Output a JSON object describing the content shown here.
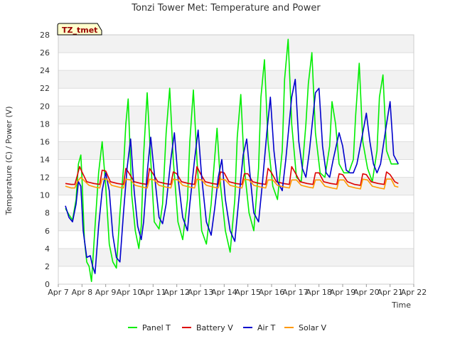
{
  "chart_data": {
    "type": "line",
    "title": "Tonzi Tower Met: Temperature and Power",
    "xlabel": "Time",
    "ylabel": "Temperature (C) / Power (V)",
    "site_tag": "TZ_tmet",
    "xlim": [
      7,
      22
    ],
    "ylim": [
      0,
      28
    ],
    "x_ticks": [
      7,
      8,
      9,
      10,
      11,
      12,
      13,
      14,
      15,
      16,
      17,
      18,
      19,
      20,
      21,
      22
    ],
    "x_tick_labels": [
      "Apr 7",
      "Apr 8",
      "Apr 9",
      "Apr 10",
      "Apr 11",
      "Apr 12",
      "Apr 13",
      "Apr 14",
      "Apr 15",
      "Apr 16",
      "Apr 17",
      "Apr 18",
      "Apr 19",
      "Apr 20",
      "Apr 21",
      "Apr 22"
    ],
    "y_ticks": [
      0,
      2,
      4,
      6,
      8,
      10,
      12,
      14,
      16,
      18,
      20,
      22,
      24,
      26,
      28
    ],
    "y_tick_labels": [
      "0",
      "2",
      "4",
      "6",
      "8",
      "10",
      "12",
      "14",
      "16",
      "18",
      "20",
      "22",
      "24",
      "26",
      "28"
    ],
    "legend_position": "bottom-center",
    "series": [
      {
        "name": "Panel T",
        "color": "#00ee00",
        "x": [
          7.3,
          7.45,
          7.6,
          7.75,
          7.85,
          7.95,
          8.0,
          8.1,
          8.2,
          8.3,
          8.4,
          8.55,
          8.7,
          8.85,
          9.0,
          9.15,
          9.3,
          9.45,
          9.6,
          9.75,
          9.85,
          9.95,
          10.1,
          10.25,
          10.4,
          10.5,
          10.6,
          10.75,
          10.9,
          11.05,
          11.25,
          11.4,
          11.55,
          11.7,
          11.85,
          12.05,
          12.25,
          12.45,
          12.55,
          12.7,
          12.85,
          13.05,
          13.25,
          13.45,
          13.55,
          13.7,
          13.85,
          14.05,
          14.25,
          14.45,
          14.55,
          14.7,
          14.85,
          15.05,
          15.25,
          15.45,
          15.55,
          15.7,
          15.85,
          16.05,
          16.25,
          16.45,
          16.55,
          16.7,
          16.85,
          17.05,
          17.25,
          17.45,
          17.55,
          17.7,
          17.85,
          18.05,
          18.25,
          18.45,
          18.55,
          18.7,
          18.85,
          19.05,
          19.25,
          19.45,
          19.55,
          19.7,
          19.85,
          20.05,
          20.25,
          20.45,
          20.55,
          20.7,
          20.85,
          21.05,
          21.2,
          21.35
        ],
        "values": [
          8.5,
          7.8,
          7.2,
          9.5,
          13.5,
          14.5,
          12.0,
          5.0,
          2.5,
          2.0,
          0.3,
          6.5,
          12.5,
          16.0,
          11.0,
          4.5,
          2.5,
          1.8,
          8.0,
          13.0,
          18.0,
          20.8,
          10.0,
          6.0,
          4.0,
          6.5,
          14.5,
          21.5,
          14.0,
          7.0,
          6.2,
          9.0,
          17.0,
          22.0,
          14.0,
          7.0,
          5.0,
          9.5,
          16.0,
          21.8,
          14.0,
          6.0,
          4.5,
          9.0,
          12.5,
          17.5,
          11.0,
          6.0,
          3.6,
          9.5,
          16.5,
          21.3,
          13.0,
          8.0,
          6.0,
          13.0,
          21.0,
          25.2,
          16.0,
          11.0,
          9.5,
          15.0,
          23.0,
          27.5,
          18.0,
          12.0,
          11.5,
          18.0,
          22.5,
          26.0,
          17.0,
          12.5,
          12.0,
          15.5,
          20.5,
          18.0,
          13.5,
          12.5,
          12.5,
          14.0,
          19.0,
          24.8,
          16.0,
          13.0,
          11.5,
          15.0,
          21.0,
          23.5,
          15.0,
          13.5,
          13.5,
          13.5
        ]
      },
      {
        "name": "Battery V",
        "color": "#dd0000",
        "x": [
          7.3,
          7.55,
          7.7,
          7.8,
          7.9,
          8.0,
          8.2,
          8.5,
          8.75,
          8.85,
          9.0,
          9.2,
          9.5,
          9.75,
          9.85,
          10.0,
          10.2,
          10.5,
          10.75,
          10.85,
          11.0,
          11.2,
          11.5,
          11.75,
          11.85,
          12.0,
          12.2,
          12.5,
          12.75,
          12.85,
          13.0,
          13.2,
          13.5,
          13.75,
          13.85,
          14.0,
          14.2,
          14.5,
          14.75,
          14.85,
          15.0,
          15.2,
          15.5,
          15.75,
          15.85,
          16.0,
          16.2,
          16.5,
          16.75,
          16.85,
          17.0,
          17.2,
          17.5,
          17.75,
          17.85,
          18.0,
          18.2,
          18.5,
          18.75,
          18.85,
          19.0,
          19.2,
          19.5,
          19.75,
          19.85,
          20.0,
          20.2,
          20.5,
          20.75,
          20.85,
          21.0,
          21.2,
          21.35
        ],
        "values": [
          11.3,
          11.2,
          11.2,
          12.2,
          13.2,
          12.6,
          11.5,
          11.3,
          11.2,
          12.8,
          12.7,
          11.5,
          11.3,
          11.2,
          13.0,
          12.4,
          11.5,
          11.3,
          11.2,
          13.0,
          12.4,
          11.5,
          11.3,
          11.2,
          12.6,
          12.4,
          11.5,
          11.3,
          11.2,
          13.2,
          12.4,
          11.5,
          11.3,
          11.2,
          12.6,
          12.5,
          11.5,
          11.3,
          11.2,
          12.4,
          12.4,
          11.5,
          11.3,
          11.2,
          13.0,
          12.5,
          11.5,
          11.3,
          11.2,
          13.2,
          12.5,
          11.5,
          11.3,
          11.2,
          12.5,
          12.5,
          11.5,
          11.3,
          11.2,
          12.4,
          12.3,
          11.5,
          11.2,
          11.1,
          12.4,
          12.3,
          11.5,
          11.3,
          11.2,
          12.6,
          12.3,
          11.5,
          11.3
        ]
      },
      {
        "name": "Air T",
        "color": "#0000cc",
        "x": [
          7.3,
          7.45,
          7.6,
          7.75,
          7.85,
          7.95,
          8.05,
          8.2,
          8.35,
          8.45,
          8.55,
          8.7,
          8.85,
          9.0,
          9.15,
          9.3,
          9.45,
          9.6,
          9.75,
          9.9,
          10.05,
          10.2,
          10.35,
          10.5,
          10.6,
          10.75,
          10.9,
          11.05,
          11.25,
          11.4,
          11.55,
          11.75,
          11.9,
          12.05,
          12.25,
          12.45,
          12.55,
          12.75,
          12.9,
          13.05,
          13.25,
          13.45,
          13.6,
          13.75,
          13.9,
          14.05,
          14.25,
          14.45,
          14.6,
          14.8,
          14.95,
          15.1,
          15.25,
          15.45,
          15.6,
          15.8,
          15.95,
          16.1,
          16.25,
          16.45,
          16.6,
          16.85,
          17.0,
          17.15,
          17.3,
          17.45,
          17.6,
          17.85,
          18.0,
          18.15,
          18.3,
          18.45,
          18.6,
          18.85,
          19.0,
          19.15,
          19.3,
          19.45,
          19.6,
          19.85,
          20.0,
          20.15,
          20.3,
          20.45,
          20.6,
          20.85,
          21.0,
          21.15,
          21.35
        ],
        "values": [
          8.8,
          7.5,
          7.0,
          9.0,
          11.5,
          11.0,
          6.0,
          3.0,
          3.2,
          2.0,
          1.2,
          6.5,
          10.5,
          12.5,
          10.5,
          5.5,
          3.0,
          2.5,
          8.0,
          13.0,
          16.3,
          10.5,
          6.5,
          5.0,
          7.0,
          12.5,
          16.5,
          12.5,
          7.5,
          6.8,
          9.0,
          14.0,
          17.0,
          12.0,
          7.5,
          6.0,
          9.0,
          14.0,
          17.3,
          12.0,
          7.0,
          5.5,
          8.5,
          12.0,
          14.0,
          9.5,
          6.0,
          4.8,
          9.0,
          14.5,
          16.3,
          12.0,
          8.0,
          7.0,
          11.0,
          17.0,
          21.0,
          15.0,
          11.5,
          10.5,
          14.0,
          21.0,
          23.0,
          16.0,
          13.0,
          12.0,
          15.0,
          21.5,
          22.0,
          15.5,
          12.5,
          12.0,
          14.0,
          17.0,
          15.5,
          12.8,
          12.5,
          12.5,
          13.5,
          17.0,
          19.2,
          16.0,
          13.5,
          12.5,
          13.5,
          18.0,
          20.5,
          14.5,
          13.5
        ]
      },
      {
        "name": "Solar V",
        "color": "#ff9900",
        "x": [
          7.3,
          7.55,
          7.7,
          7.8,
          7.95,
          8.1,
          8.3,
          8.55,
          8.75,
          8.85,
          9.05,
          9.25,
          9.55,
          9.75,
          9.85,
          10.05,
          10.25,
          10.55,
          10.75,
          10.85,
          11.05,
          11.25,
          11.55,
          11.75,
          11.85,
          12.05,
          12.25,
          12.55,
          12.75,
          12.85,
          13.05,
          13.25,
          13.55,
          13.75,
          13.85,
          14.05,
          14.25,
          14.55,
          14.75,
          14.85,
          15.05,
          15.25,
          15.55,
          15.75,
          15.85,
          16.05,
          16.25,
          16.55,
          16.75,
          16.85,
          17.05,
          17.25,
          17.55,
          17.75,
          17.85,
          18.05,
          18.25,
          18.55,
          18.75,
          18.85,
          19.05,
          19.25,
          19.55,
          19.75,
          19.85,
          20.05,
          20.25,
          20.55,
          20.75,
          20.85,
          21.05,
          21.2,
          21.35
        ],
        "values": [
          11.0,
          10.8,
          10.8,
          11.5,
          12.0,
          11.6,
          11.1,
          10.9,
          10.8,
          11.8,
          11.8,
          11.1,
          10.9,
          10.8,
          11.8,
          11.7,
          11.1,
          10.9,
          10.8,
          11.8,
          11.7,
          11.1,
          10.9,
          10.8,
          11.8,
          11.7,
          11.1,
          10.9,
          10.8,
          11.8,
          11.7,
          11.1,
          10.9,
          10.8,
          11.8,
          11.7,
          11.1,
          10.9,
          10.8,
          11.8,
          11.7,
          11.1,
          10.9,
          10.8,
          11.7,
          11.7,
          11.1,
          10.9,
          10.8,
          11.7,
          11.7,
          11.1,
          10.9,
          10.8,
          11.7,
          11.7,
          11.0,
          10.8,
          10.7,
          11.7,
          11.7,
          11.0,
          10.8,
          10.7,
          11.8,
          11.7,
          11.0,
          10.8,
          10.7,
          11.8,
          11.8,
          11.0,
          10.9
        ]
      }
    ]
  }
}
